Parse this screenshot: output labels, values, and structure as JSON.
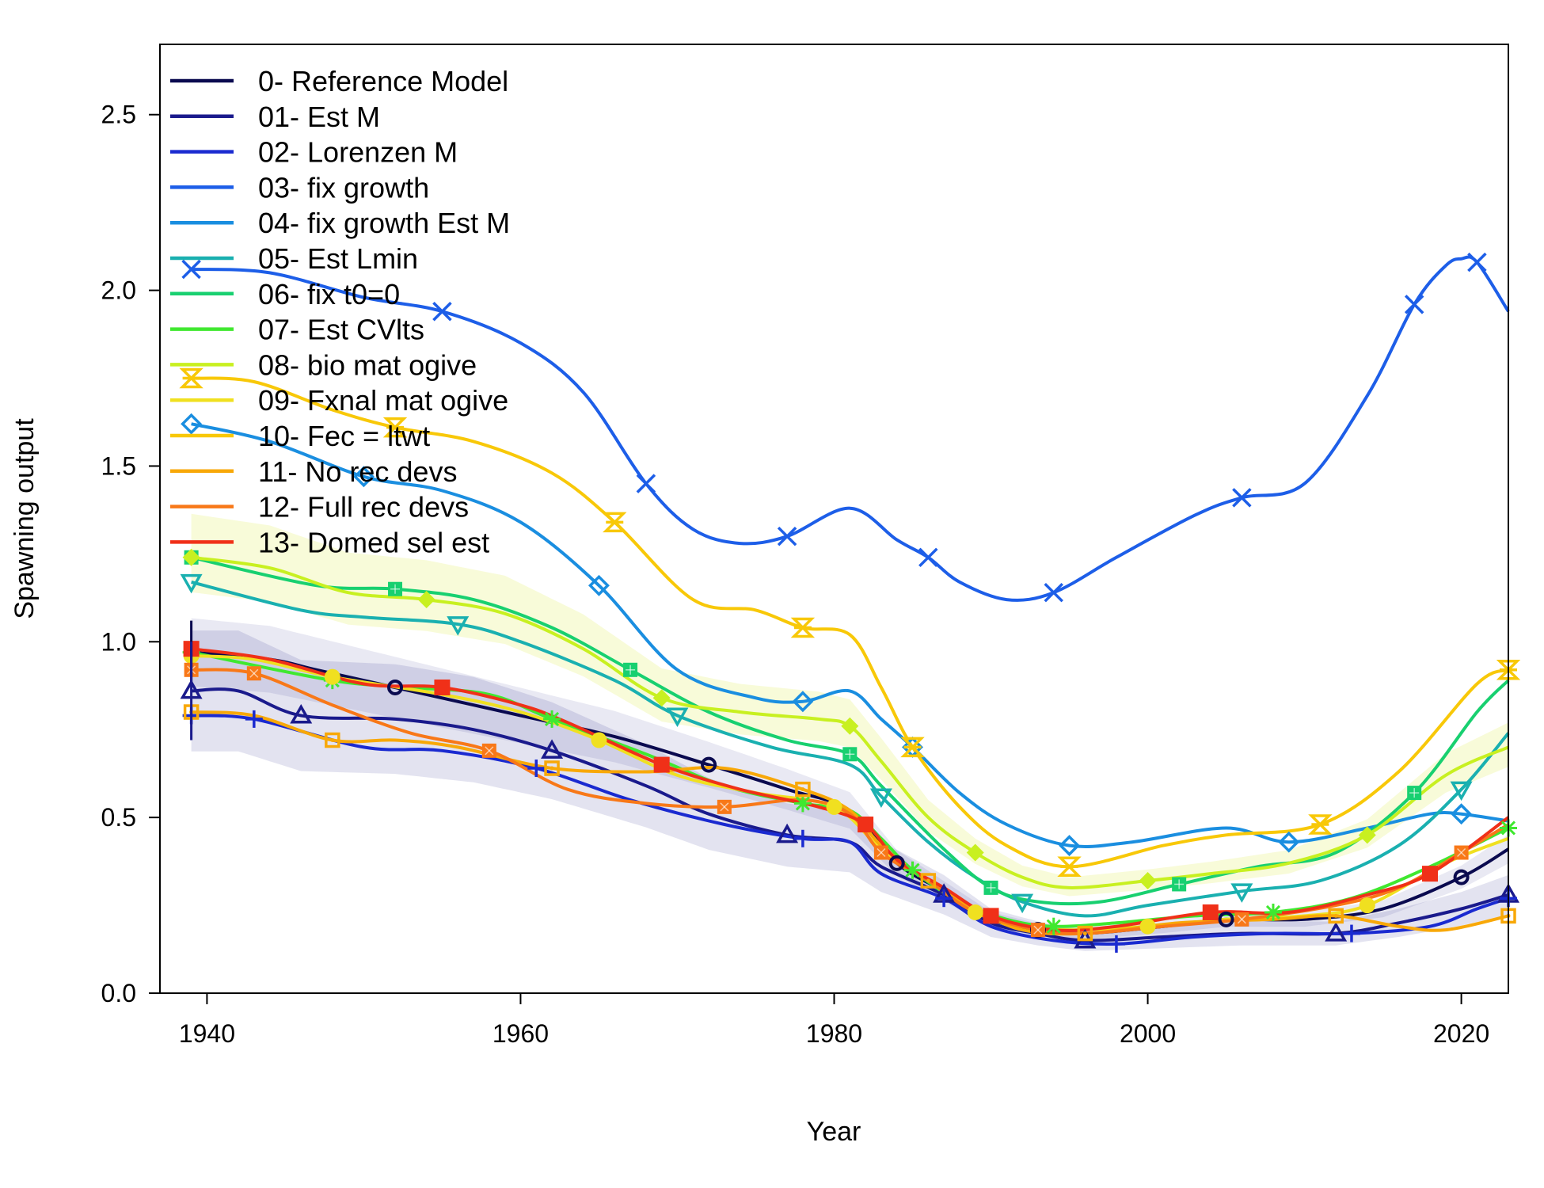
{
  "chart_data": {
    "type": "line",
    "title": "",
    "xlabel": "Year",
    "ylabel": "Spawning output",
    "xlim": [
      1937,
      2023
    ],
    "ylim": [
      0,
      2.7
    ],
    "xticks": [
      "1940",
      "1960",
      "1980",
      "2000",
      "2020"
    ],
    "yticks": [
      "0.0",
      "0.5",
      "1.0",
      "1.5",
      "2.0",
      "2.5"
    ],
    "legend_position": "top-left",
    "grid": false,
    "series": [
      {
        "name": "0- Reference Model",
        "color": "#0a0a4f",
        "marker": "circle-open",
        "x": [
          1939,
          1944,
          1947,
          1952,
          1960,
          1966,
          1972,
          1977,
          1981,
          1984,
          1987,
          1990,
          1993,
          1996,
          2001,
          2005,
          2010,
          2015,
          2020,
          2023
        ],
        "y": [
          0.97,
          0.95,
          0.92,
          0.87,
          0.79,
          0.73,
          0.65,
          0.58,
          0.52,
          0.37,
          0.29,
          0.21,
          0.18,
          0.17,
          0.19,
          0.21,
          0.21,
          0.24,
          0.33,
          0.41
        ]
      },
      {
        "name": "01- Est M",
        "color": "#1a1a8c",
        "marker": "triangle",
        "x": [
          1939,
          1942,
          1946,
          1952,
          1957,
          1962,
          1968,
          1972,
          1977,
          1981,
          1983,
          1987,
          1990,
          1993,
          1996,
          2001,
          2006,
          2012,
          2016,
          2020,
          2023
        ],
        "y": [
          0.86,
          0.86,
          0.79,
          0.78,
          0.75,
          0.69,
          0.59,
          0.51,
          0.45,
          0.43,
          0.36,
          0.28,
          0.2,
          0.17,
          0.15,
          0.16,
          0.17,
          0.17,
          0.2,
          0.24,
          0.28
        ]
      },
      {
        "name": "02- Lorenzen M",
        "color": "#1a2ad0",
        "marker": "plus",
        "x": [
          1939,
          1943,
          1950,
          1955,
          1961,
          1967,
          1973,
          1978,
          1981,
          1983,
          1987,
          1990,
          1994,
          1998,
          2003,
          2008,
          2013,
          2018,
          2021,
          2023
        ],
        "y": [
          0.79,
          0.78,
          0.7,
          0.69,
          0.64,
          0.55,
          0.48,
          0.44,
          0.43,
          0.34,
          0.27,
          0.19,
          0.15,
          0.14,
          0.16,
          0.17,
          0.17,
          0.19,
          0.24,
          0.27
        ]
      },
      {
        "name": "03- fix growth",
        "color": "#1d5ee8",
        "marker": "x",
        "x": [
          1939,
          1944,
          1950,
          1955,
          1960,
          1964,
          1968,
          1971,
          1974,
          1977,
          1981,
          1984,
          1986,
          1988,
          1991,
          1994,
          1998,
          2003,
          2006,
          2010,
          2014,
          2017,
          2019,
          2020,
          2021,
          2023
        ],
        "y": [
          2.06,
          2.05,
          1.98,
          1.94,
          1.85,
          1.71,
          1.45,
          1.32,
          1.28,
          1.3,
          1.38,
          1.29,
          1.24,
          1.17,
          1.12,
          1.14,
          1.24,
          1.36,
          1.41,
          1.45,
          1.7,
          1.96,
          2.07,
          2.09,
          2.08,
          1.94
        ]
      },
      {
        "name": "04- fix growth Est M",
        "color": "#1a8ee0",
        "marker": "diamond",
        "x": [
          1939,
          1944,
          1950,
          1955,
          1960,
          1965,
          1970,
          1975,
          1978,
          1981,
          1983,
          1985,
          1988,
          1991,
          1995,
          1999,
          2005,
          2009,
          2014,
          2018,
          2020,
          2023
        ],
        "y": [
          1.62,
          1.57,
          1.47,
          1.43,
          1.34,
          1.16,
          0.92,
          0.84,
          0.83,
          0.86,
          0.78,
          0.7,
          0.57,
          0.48,
          0.42,
          0.43,
          0.47,
          0.43,
          0.47,
          0.51,
          0.51,
          0.49
        ]
      },
      {
        "name": "05- Est Lmin",
        "color": "#1ab0b0",
        "marker": "triangle-down",
        "x": [
          1939,
          1946,
          1950,
          1956,
          1960,
          1966,
          1970,
          1976,
          1981,
          1983,
          1986,
          1989,
          1992,
          1996,
          2000,
          2006,
          2011,
          2016,
          2020,
          2023
        ],
        "y": [
          1.17,
          1.09,
          1.07,
          1.05,
          1.0,
          0.89,
          0.79,
          0.7,
          0.65,
          0.56,
          0.43,
          0.33,
          0.26,
          0.22,
          0.25,
          0.29,
          0.32,
          0.42,
          0.58,
          0.74
        ]
      },
      {
        "name": "06- fix t0=0",
        "color": "#18d070",
        "marker": "square-plus",
        "x": [
          1939,
          1947,
          1952,
          1957,
          1962,
          1967,
          1972,
          1977,
          1981,
          1983,
          1987,
          1990,
          1993,
          1997,
          2002,
          2007,
          2012,
          2017,
          2021,
          2023
        ],
        "y": [
          1.24,
          1.16,
          1.15,
          1.12,
          1.04,
          0.92,
          0.8,
          0.72,
          0.68,
          0.59,
          0.41,
          0.3,
          0.26,
          0.26,
          0.31,
          0.36,
          0.4,
          0.57,
          0.8,
          0.89
        ]
      },
      {
        "name": "07- Est CVlts",
        "color": "#40e830",
        "marker": "asterisk",
        "x": [
          1939,
          1948,
          1953,
          1958,
          1962,
          1968,
          1973,
          1978,
          1981,
          1983,
          1985,
          1988,
          1991,
          1994,
          1998,
          2003,
          2008,
          2013,
          2018,
          2023
        ],
        "y": [
          0.97,
          0.89,
          0.87,
          0.85,
          0.78,
          0.68,
          0.59,
          0.54,
          0.52,
          0.44,
          0.35,
          0.26,
          0.21,
          0.19,
          0.2,
          0.22,
          0.23,
          0.27,
          0.36,
          0.47
        ]
      },
      {
        "name": "08- bio mat ogive",
        "color": "#c8f020",
        "marker": "diamond-filled",
        "x": [
          1939,
          1944,
          1949,
          1954,
          1959,
          1964,
          1969,
          1974,
          1979,
          1981,
          1983,
          1986,
          1989,
          1992,
          1995,
          2000,
          2004,
          2009,
          2014,
          2019,
          2023
        ],
        "y": [
          1.24,
          1.21,
          1.14,
          1.12,
          1.08,
          0.98,
          0.84,
          0.8,
          0.78,
          0.76,
          0.66,
          0.5,
          0.4,
          0.33,
          0.3,
          0.32,
          0.34,
          0.37,
          0.45,
          0.62,
          0.7
        ]
      },
      {
        "name": "09- Fxnal mat ogive",
        "color": "#f0e020",
        "marker": "circle-filled",
        "x": [
          1939,
          1943,
          1948,
          1955,
          1960,
          1965,
          1970,
          1975,
          1980,
          1983,
          1986,
          1989,
          1992,
          1995,
          2000,
          2005,
          2010,
          2014,
          2019,
          2023
        ],
        "y": [
          0.96,
          0.95,
          0.9,
          0.85,
          0.8,
          0.72,
          0.62,
          0.57,
          0.53,
          0.41,
          0.32,
          0.23,
          0.19,
          0.18,
          0.19,
          0.21,
          0.22,
          0.25,
          0.37,
          0.44
        ]
      },
      {
        "name": "10- Fec = ltwt",
        "color": "#f8c808",
        "marker": "hourglass",
        "x": [
          1939,
          1943,
          1948,
          1952,
          1957,
          1962,
          1966,
          1971,
          1975,
          1978,
          1981,
          1983,
          1985,
          1988,
          1991,
          1995,
          2001,
          2005,
          2011,
          2016,
          2021,
          2023
        ],
        "y": [
          1.75,
          1.74,
          1.66,
          1.61,
          1.57,
          1.48,
          1.34,
          1.12,
          1.09,
          1.04,
          1.02,
          0.87,
          0.7,
          0.53,
          0.42,
          0.36,
          0.42,
          0.45,
          0.48,
          0.63,
          0.88,
          0.92
        ]
      },
      {
        "name": "11- No rec devs",
        "color": "#f8a808",
        "marker": "square-dot",
        "x": [
          1939,
          1943,
          1948,
          1952,
          1956,
          1962,
          1968,
          1973,
          1978,
          1981,
          1983,
          1986,
          1989,
          1992,
          1996,
          2002,
          2008,
          2012,
          2016,
          2019,
          2023
        ],
        "y": [
          0.8,
          0.79,
          0.72,
          0.72,
          0.7,
          0.64,
          0.63,
          0.64,
          0.58,
          0.52,
          0.42,
          0.32,
          0.24,
          0.18,
          0.17,
          0.2,
          0.21,
          0.22,
          0.19,
          0.18,
          0.22
        ]
      },
      {
        "name": "12- Full rec devs",
        "color": "#f87818",
        "marker": "square-x",
        "x": [
          1939,
          1943,
          1948,
          1953,
          1958,
          1963,
          1968,
          1973,
          1978,
          1981,
          1983,
          1986,
          1989,
          1993,
          1996,
          2001,
          2006,
          2012,
          2016,
          2020,
          2023
        ],
        "y": [
          0.92,
          0.91,
          0.82,
          0.74,
          0.69,
          0.58,
          0.54,
          0.53,
          0.55,
          0.51,
          0.4,
          0.32,
          0.23,
          0.18,
          0.17,
          0.19,
          0.21,
          0.25,
          0.3,
          0.4,
          0.48
        ]
      },
      {
        "name": "13- Domed sel est",
        "color": "#f03018",
        "marker": "square-filled",
        "x": [
          1939,
          1944,
          1950,
          1955,
          1960,
          1963,
          1969,
          1974,
          1979,
          1982,
          1984,
          1987,
          1990,
          1994,
          1998,
          2004,
          2009,
          2014,
          2018,
          2023
        ],
        "y": [
          0.98,
          0.95,
          0.88,
          0.87,
          0.82,
          0.77,
          0.65,
          0.58,
          0.53,
          0.48,
          0.38,
          0.3,
          0.22,
          0.18,
          0.19,
          0.23,
          0.23,
          0.28,
          0.34,
          0.5
        ]
      }
    ]
  }
}
